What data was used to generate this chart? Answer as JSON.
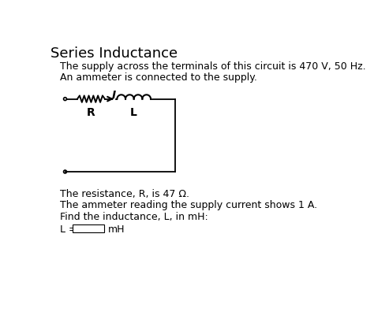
{
  "title": "Series Inductance",
  "line1": "The supply across the terminals of this circuit is 470 V, 50 Hz.",
  "line2": "An ammeter is connected to the supply.",
  "line3": "The resistance, R, is 47 Ω.",
  "line4": "The ammeter reading the supply current shows 1 A.",
  "line5": "Find the inductance, L, in mH:",
  "line6_prefix": "L = ",
  "line6_suffix": "   mH",
  "label_R": "R",
  "label_L": "L",
  "label_I": "I",
  "bg_color": "#ffffff",
  "text_color": "#000000",
  "font_size_title": 13,
  "font_size_body": 9.0,
  "font_size_label": 10
}
